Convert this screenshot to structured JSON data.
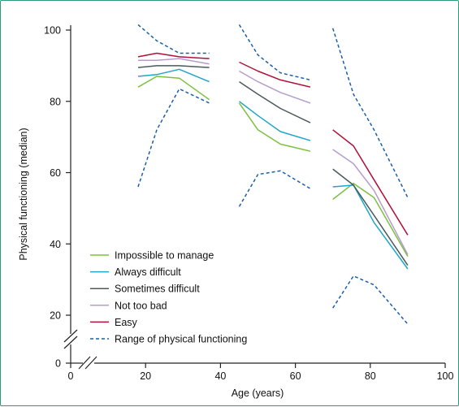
{
  "chart_data": {
    "type": "line",
    "title": "",
    "xlabel": "Age (years)",
    "ylabel": "Physical functioning (median)",
    "xlim": [
      0,
      100
    ],
    "ylim": [
      0,
      100
    ],
    "axis_break": "y between 0 and 20; x between 0 and 20",
    "x_ticks": [
      0,
      20,
      40,
      60,
      80,
      100
    ],
    "y_ticks": [
      0,
      20,
      40,
      60,
      80,
      100
    ],
    "x_tick_labels": [
      "0",
      "20",
      "40",
      "60",
      "80",
      "100"
    ],
    "y_tick_labels": [
      "0",
      "20",
      "40",
      "60",
      "80",
      "100"
    ],
    "grid": false,
    "legend_position": "bottom-left",
    "colors": {
      "impossible": "#7cc040",
      "always": "#1fa6c8",
      "sometimes": "#4a5a5a",
      "not_too_bad": "#b79ccc",
      "easy": "#b0103a",
      "range": "#1b5fa8"
    },
    "series": [
      {
        "name": "Impossible to manage",
        "color_key": "impossible",
        "style": "solid",
        "segments": [
          [
            [
              18,
              84
            ],
            [
              23,
              87
            ],
            [
              29,
              86.5
            ],
            [
              37,
              80.5
            ]
          ],
          [
            [
              45,
              79.5
            ],
            [
              50,
              72
            ],
            [
              56,
              68
            ],
            [
              64,
              66
            ]
          ],
          [
            [
              70,
              52.5
            ],
            [
              75.5,
              57
            ],
            [
              81,
              53
            ],
            [
              90,
              36.5
            ]
          ]
        ]
      },
      {
        "name": "Always difficult",
        "color_key": "always",
        "style": "solid",
        "segments": [
          [
            [
              18,
              87
            ],
            [
              23,
              87.5
            ],
            [
              29,
              89
            ],
            [
              37,
              85.5
            ]
          ],
          [
            [
              45,
              80
            ],
            [
              50,
              76
            ],
            [
              56,
              71.5
            ],
            [
              64,
              69
            ]
          ],
          [
            [
              70,
              56
            ],
            [
              75.5,
              56.5
            ],
            [
              81,
              46
            ],
            [
              90,
              33
            ]
          ]
        ]
      },
      {
        "name": "Sometimes difficult",
        "color_key": "sometimes",
        "style": "solid",
        "segments": [
          [
            [
              18,
              89.5
            ],
            [
              23,
              90
            ],
            [
              29,
              90
            ],
            [
              37,
              89.5
            ]
          ],
          [
            [
              45,
              85.5
            ],
            [
              50,
              82
            ],
            [
              56,
              78
            ],
            [
              64,
              74
            ]
          ],
          [
            [
              70,
              61
            ],
            [
              75.5,
              56.5
            ],
            [
              81,
              48
            ],
            [
              90,
              34
            ]
          ]
        ]
      },
      {
        "name": "Not too bad",
        "color_key": "not_too_bad",
        "style": "solid",
        "segments": [
          [
            [
              18,
              91.5
            ],
            [
              23,
              91.5
            ],
            [
              29,
              92
            ],
            [
              37,
              90.5
            ]
          ],
          [
            [
              45,
              88.5
            ],
            [
              50,
              85.5
            ],
            [
              56,
              82.5
            ],
            [
              64,
              79.5
            ]
          ],
          [
            [
              70,
              66.5
            ],
            [
              75.5,
              62.5
            ],
            [
              81,
              55
            ],
            [
              90,
              37
            ]
          ]
        ]
      },
      {
        "name": "Easy",
        "color_key": "easy",
        "style": "solid",
        "segments": [
          [
            [
              18,
              92.5
            ],
            [
              23,
              93.5
            ],
            [
              29,
              92.5
            ],
            [
              37,
              92
            ]
          ],
          [
            [
              45,
              91
            ],
            [
              50,
              88.5
            ],
            [
              56,
              86
            ],
            [
              64,
              84
            ]
          ],
          [
            [
              70,
              72
            ],
            [
              75.5,
              67.5
            ],
            [
              81,
              58
            ],
            [
              90,
              42.5
            ]
          ]
        ]
      },
      {
        "name": "Range of physical functioning",
        "color_key": "range",
        "style": "dashed",
        "segments": [
          [
            [
              18,
              101.5
            ],
            [
              23,
              97
            ],
            [
              29,
              93.5
            ],
            [
              37,
              93.5
            ]
          ],
          [
            [
              18,
              56
            ],
            [
              23,
              72
            ],
            [
              29,
              83.5
            ],
            [
              37,
              79.5
            ]
          ],
          [
            [
              45,
              101.5
            ],
            [
              50,
              93
            ],
            [
              56,
              88
            ],
            [
              64,
              86
            ]
          ],
          [
            [
              45,
              50.5
            ],
            [
              50,
              59.5
            ],
            [
              56,
              60.5
            ],
            [
              64,
              55.5
            ]
          ],
          [
            [
              70,
              100.5
            ],
            [
              75.5,
              82
            ],
            [
              81,
              72
            ],
            [
              90,
              53
            ]
          ],
          [
            [
              70,
              22
            ],
            [
              75.5,
              31
            ],
            [
              81,
              28.5
            ],
            [
              90,
              17.5
            ]
          ]
        ]
      }
    ]
  }
}
